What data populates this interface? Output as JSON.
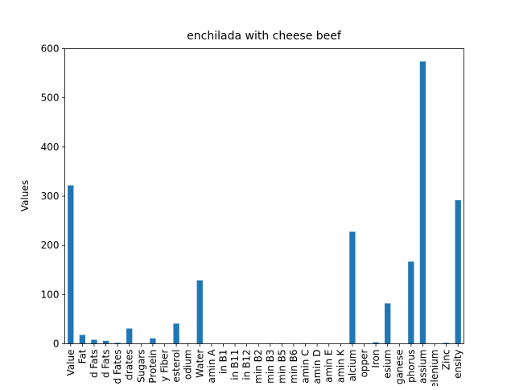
{
  "chart_data": {
    "type": "bar",
    "title": "enchilada with cheese beef",
    "xlabel": "",
    "ylabel": "Values",
    "ylim": [
      0,
      600
    ],
    "yticks": [
      0,
      100,
      200,
      300,
      400,
      500,
      600
    ],
    "grid": false,
    "bar_color": "#1f77b4",
    "categories": [
      "Value",
      "Fat",
      "d Fats",
      "d Fats",
      "d Fates",
      "drates",
      "Sugars",
      "Protein",
      "y Fiber",
      "esterol",
      "odium",
      "Water",
      "amin A",
      "in B1",
      "in B11",
      "in B12",
      "min B2",
      "min B3",
      "min B5",
      "min B6",
      "amin C",
      "amin D",
      "amin E",
      "amin K",
      "alcium",
      "opper",
      "Iron",
      "esium",
      "ganese",
      "phorus",
      "assium",
      "elenium",
      "Zinc",
      "ensity"
    ],
    "values": [
      322,
      18,
      8,
      6,
      2,
      31,
      0,
      11,
      0,
      41,
      1,
      129,
      0,
      0,
      0,
      0,
      0,
      1,
      1,
      0,
      1,
      0,
      0,
      0,
      228,
      0,
      3,
      82,
      0,
      167,
      574,
      0,
      2,
      292
    ]
  }
}
